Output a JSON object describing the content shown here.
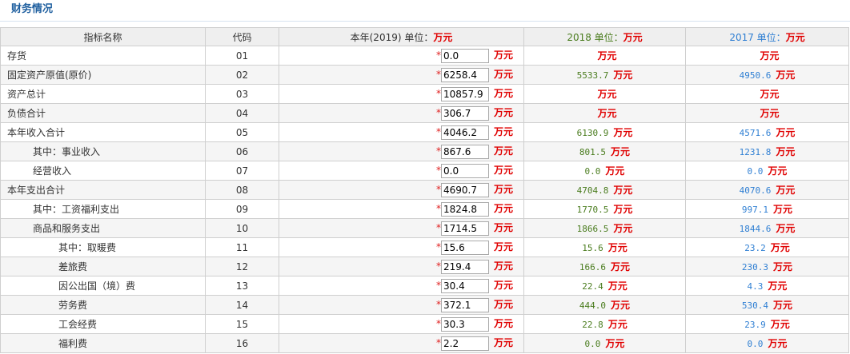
{
  "section_title": "财务情况",
  "headers": {
    "name": "指标名称",
    "code": "代码",
    "current_year": "本年(2019) 单位：",
    "y2018": "2018 单位：",
    "y2017": "2017 单位：",
    "unit": "万元"
  },
  "unit": "万元",
  "required_mark": "*",
  "colors": {
    "y2018": "#4a7c1e",
    "y2017": "#2f7fd3",
    "unit": "#e00000",
    "required": "#e02020"
  },
  "rows": [
    {
      "name": "存货",
      "code": "01",
      "current": "0.0",
      "y2018": "",
      "y2017": ""
    },
    {
      "name": "固定资产原值(原价)",
      "code": "02",
      "current": "6258.4",
      "y2018": "5533.7",
      "y2017": "4950.6"
    },
    {
      "name": "资产总计",
      "code": "03",
      "current": "10857.9",
      "y2018": "",
      "y2017": ""
    },
    {
      "name": "负债合计",
      "code": "04",
      "current": "306.7",
      "y2018": "",
      "y2017": ""
    },
    {
      "name": "本年收入合计",
      "code": "05",
      "current": "4046.2",
      "y2018": "6130.9",
      "y2017": "4571.6"
    },
    {
      "name": "其中：事业收入",
      "code": "06",
      "current": "867.6",
      "y2018": "801.5",
      "y2017": "1231.8"
    },
    {
      "name": "经营收入",
      "code": "07",
      "current": "0.0",
      "y2018": "0.0",
      "y2017": "0.0"
    },
    {
      "name": "本年支出合计",
      "code": "08",
      "current": "4690.7",
      "y2018": "4704.8",
      "y2017": "4070.6"
    },
    {
      "name": "其中：工资福利支出",
      "code": "09",
      "current": "1824.8",
      "y2018": "1770.5",
      "y2017": "997.1"
    },
    {
      "name": "商品和服务支出",
      "code": "10",
      "current": "1714.5",
      "y2018": "1866.5",
      "y2017": "1844.6"
    },
    {
      "name": "其中：取暖费",
      "code": "11",
      "current": "15.6",
      "y2018": "15.6",
      "y2017": "23.2"
    },
    {
      "name": "差旅费",
      "code": "12",
      "current": "219.4",
      "y2018": "166.6",
      "y2017": "230.3"
    },
    {
      "name": "因公出国（境）费",
      "code": "13",
      "current": "30.4",
      "y2018": "22.4",
      "y2017": "4.3"
    },
    {
      "name": "劳务费",
      "code": "14",
      "current": "372.1",
      "y2018": "444.0",
      "y2017": "530.4"
    },
    {
      "name": "工会经费",
      "code": "15",
      "current": "30.3",
      "y2018": "22.8",
      "y2017": "23.9"
    },
    {
      "name": "福利费",
      "code": "16",
      "current": "2.2",
      "y2018": "0.0",
      "y2017": "0.0"
    }
  ]
}
